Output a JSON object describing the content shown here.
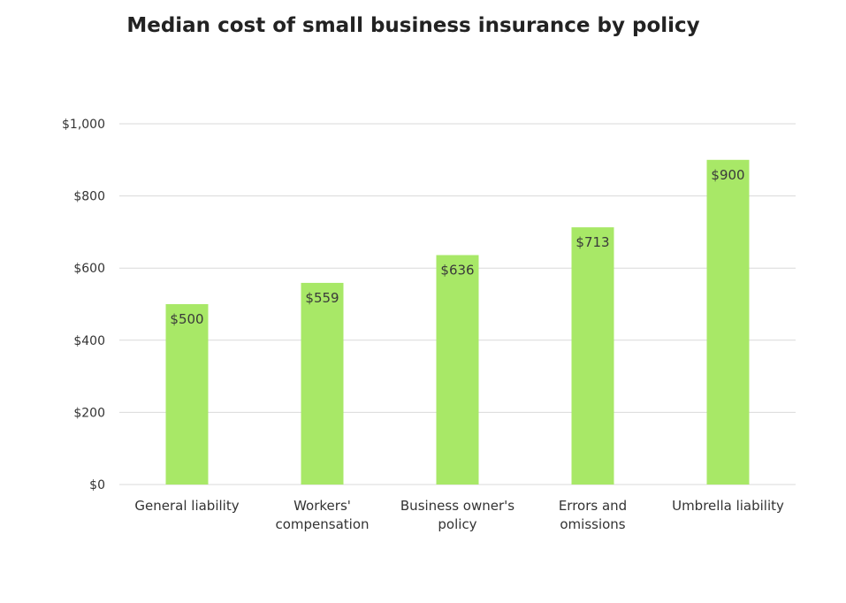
{
  "chart_data": {
    "type": "bar",
    "title": "Median cost of small business insurance by policy",
    "categories": [
      [
        "General liability"
      ],
      [
        "Workers'",
        "compensation"
      ],
      [
        "Business owner's",
        "policy"
      ],
      [
        "Errors and",
        "omissions"
      ],
      [
        "Umbrella liability"
      ]
    ],
    "values": [
      500,
      559,
      636,
      713,
      900
    ],
    "data_labels": [
      "$500",
      "$559",
      "$636",
      "$713",
      "$900"
    ],
    "ylim": [
      0,
      1000
    ],
    "yticks": [
      0,
      200,
      400,
      600,
      800,
      1000
    ],
    "ytick_labels": [
      "$0",
      "$200",
      "$400",
      "$600",
      "$800",
      "$1,000"
    ],
    "grid": true,
    "xlabel": "",
    "ylabel": "",
    "bar_color": "#a8e867",
    "grid_color": "#d9d9d9"
  }
}
